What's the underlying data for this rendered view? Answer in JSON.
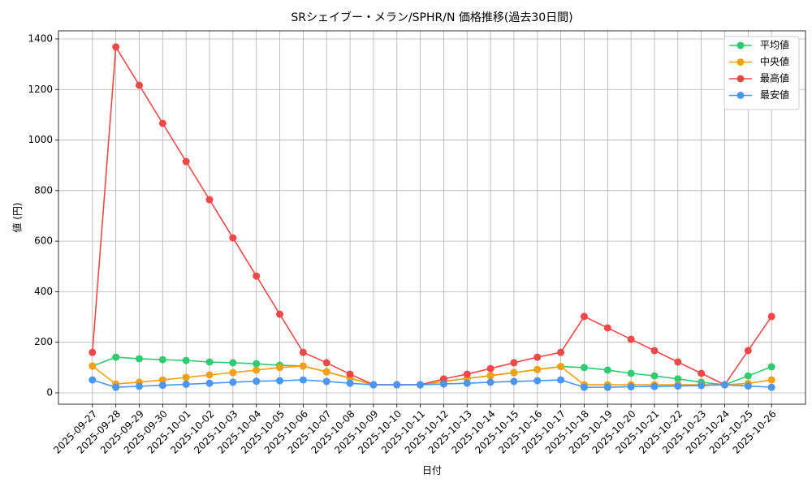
{
  "chart_data": {
    "type": "line",
    "title": "SRシェイブー・メラン/SPHR/N 価格推移(過去30日間)",
    "x_label": "日付",
    "y_label": "値 (円)",
    "categories": [
      "2025-09-27",
      "2025-09-28",
      "2025-09-29",
      "2025-09-30",
      "2025-10-01",
      "2025-10-02",
      "2025-10-03",
      "2025-10-04",
      "2025-10-05",
      "2025-10-06",
      "2025-10-07",
      "2025-10-08",
      "2025-10-09",
      "2025-10-10",
      "2025-10-11",
      "2025-10-12",
      "2025-10-13",
      "2025-10-14",
      "2025-10-15",
      "2025-10-16",
      "2025-10-17",
      "2025-10-18",
      "2025-10-19",
      "2025-10-20",
      "2025-10-21",
      "2025-10-22",
      "2025-10-23",
      "2025-10-24",
      "2025-10-25",
      "2025-10-26"
    ],
    "series": [
      {
        "name": "平均値",
        "color": "#2ecc71",
        "values": [
          106,
          141,
          135,
          131,
          128,
          122,
          119,
          115,
          109,
          106,
          83,
          58,
          32,
          32,
          32,
          45,
          57,
          68,
          80,
          92,
          104,
          100,
          90,
          77,
          67,
          55,
          42,
          32,
          67,
          103
        ]
      },
      {
        "name": "中央値",
        "color": "#f5a00f",
        "values": [
          106,
          35,
          42,
          51,
          61,
          71,
          80,
          90,
          100,
          106,
          83,
          58,
          32,
          32,
          32,
          45,
          57,
          68,
          80,
          92,
          104,
          32,
          32,
          32,
          32,
          32,
          32,
          32,
          37,
          51
        ]
      },
      {
        "name": "最高値",
        "color": "#f04848",
        "values": [
          160,
          1368,
          1217,
          1066,
          915,
          764,
          613,
          462,
          311,
          160,
          119,
          74,
          32,
          32,
          32,
          55,
          74,
          96,
          119,
          141,
          160,
          302,
          257,
          212,
          167,
          122,
          77,
          32,
          167,
          302
        ]
      },
      {
        "name": "最安値",
        "color": "#4a96f0",
        "values": [
          51,
          22,
          26,
          30,
          34,
          38,
          42,
          46,
          48,
          51,
          45,
          38,
          32,
          32,
          32,
          35,
          38,
          42,
          45,
          48,
          51,
          22,
          22,
          24,
          25,
          27,
          29,
          32,
          27,
          22
        ]
      }
    ],
    "ylim": [
      -45,
      1432
    ],
    "yticks": [
      0,
      200,
      400,
      600,
      800,
      1000,
      1200,
      1400
    ],
    "grid": true,
    "legend": "upper right"
  }
}
